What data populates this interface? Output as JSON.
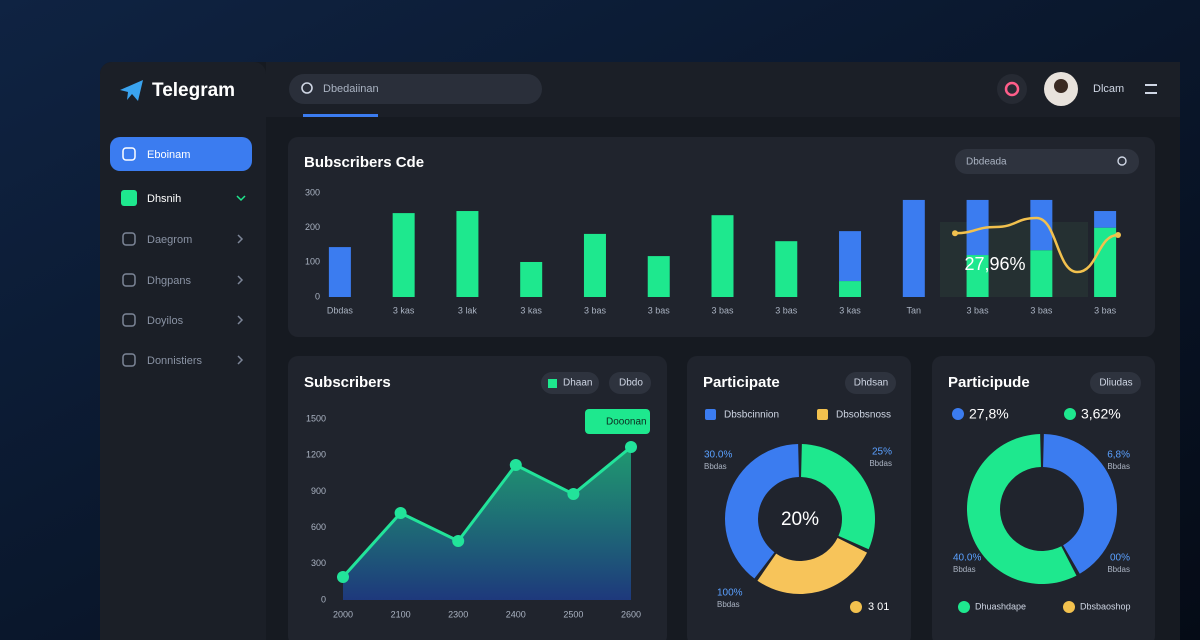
{
  "sidebar": {
    "brand": "Telegram",
    "items": [
      "Eboinam",
      "Dhsnih",
      "Daegrom",
      "Dhgpans",
      "Doyilos",
      "Donnistiers"
    ]
  },
  "header": {
    "search": "Dbedaiinan",
    "user": "Dlcam"
  },
  "bar_panel": {
    "type": "bar",
    "title": "Bubscribers Cde",
    "search": "Dbdeada",
    "categories": [
      "Dbdas",
      "3 kas",
      "3 lak",
      "3 kas",
      "3 bas",
      "3 bas",
      "3 bas",
      "3 bas",
      "3 kas",
      "Tan",
      "3 bas",
      "3 bas",
      "3 bas"
    ],
    "series": [
      {
        "color": "#1ee88e",
        "values": [
          0,
          242,
          248,
          101,
          182,
          118,
          236,
          161,
          46,
          0,
          121,
          135,
          200
        ]
      },
      {
        "color": "#3b7cf0",
        "values": [
          144,
          0,
          0,
          0,
          0,
          0,
          0,
          0,
          144,
          280,
          159,
          145,
          48
        ]
      }
    ],
    "stacked": true,
    "ylim": [
      0,
      300
    ],
    "yticks": [
      0,
      100,
      200,
      300
    ],
    "overlay": {
      "color": "#f2c14e",
      "label": "27,96%",
      "values": [
        184,
        202,
        228,
        72,
        179
      ]
    }
  },
  "line_panel": {
    "type": "line",
    "title": "Subscribers",
    "buttons": [
      "Dhaan",
      "Dbdo"
    ],
    "badge": "Dooonan",
    "categories": [
      "2000",
      "2100",
      "2300",
      "2400",
      "2500",
      "2600"
    ],
    "values": [
      191,
      721,
      489,
      1119,
      878,
      1268
    ],
    "color": "#22e39a",
    "ylim": [
      0,
      1500
    ],
    "yticks": [
      0,
      300,
      600,
      900,
      1200,
      1500
    ]
  },
  "donut_1": {
    "type": "donut",
    "title": "Participate",
    "button": "Dhdsan",
    "legend": [
      {
        "name": "Dbsbcinnion",
        "color": "#3b7cf0"
      },
      {
        "name": "Dbsobsnoss",
        "color": "#f2c14e"
      }
    ],
    "center": "20%",
    "values": [
      32,
      28,
      40
    ],
    "colors": [
      "#1ee88e",
      "#f7c45a",
      "#3b7cf0"
    ],
    "annotations": [
      {
        "text": "30.0%",
        "sub": "Bbdas"
      },
      {
        "text": "25%",
        "sub": "Bbdas"
      },
      {
        "text": "100%",
        "sub": "Bbdas"
      }
    ],
    "footer": {
      "name": "3 01",
      "color": "#f2c14e"
    }
  },
  "donut_2": {
    "type": "donut",
    "title": "Participude",
    "button": "Dliudas",
    "legend": [
      {
        "name": "27,8%",
        "color": "#3b7cf0"
      },
      {
        "name": "3,62%",
        "color": "#1ee88e"
      }
    ],
    "values": [
      42,
      58
    ],
    "colors": [
      "#3b7cf0",
      "#1ee88e"
    ],
    "annotations": [
      {
        "text": "6,8%",
        "sub": "Bbdas"
      },
      {
        "text": "00%",
        "sub": "Bbdas"
      },
      {
        "text": "40.0%",
        "sub": "Bbdas"
      }
    ],
    "bottom_legend": [
      {
        "name": "Dhuashdape",
        "color": "#1ee88e"
      },
      {
        "name": "Dbsbaoshop",
        "color": "#f2c14e"
      }
    ]
  }
}
